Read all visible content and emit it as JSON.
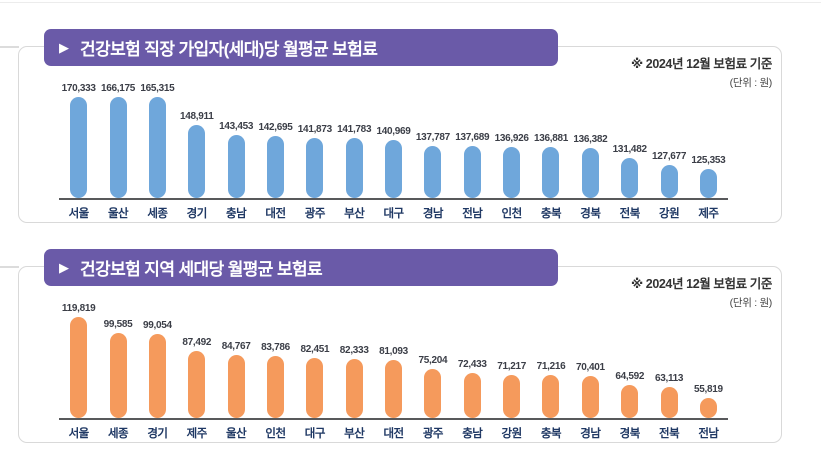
{
  "colors": {
    "header_purple": "#6a5aa8",
    "bar_blue": "#6fa7db",
    "bar_orange": "#f59a5c",
    "axis_gray": "#58595b",
    "region_label_navy": "#1f3864"
  },
  "chart_data": [
    {
      "type": "bar",
      "title_marker": "▶",
      "title": "건강보험 직장 가입자(세대)당 월평균 보험료",
      "note": "※ 2024년 12월 보험료 기준",
      "unit": "(단위 : 원)",
      "categories": [
        "서울",
        "울산",
        "세종",
        "경기",
        "충남",
        "대전",
        "광주",
        "부산",
        "대구",
        "경남",
        "전남",
        "인천",
        "충북",
        "경북",
        "전북",
        "강원",
        "제주"
      ],
      "values": [
        170333,
        166175,
        165315,
        148911,
        143453,
        142695,
        141873,
        141783,
        140969,
        137787,
        137689,
        136926,
        136881,
        136382,
        131482,
        127677,
        125353
      ],
      "value_labels": [
        "170,333",
        "166,175",
        "165,315",
        "148,911",
        "143,453",
        "142,695",
        "141,873",
        "141,783",
        "140,969",
        "137,787",
        "137,689",
        "136,926",
        "136,881",
        "136,382",
        "131,482",
        "127,677",
        "125,353"
      ],
      "bar_color": "#6fa7db",
      "xlabel": "",
      "ylabel": "원",
      "ylim": [
        110000,
        171000
      ],
      "grid": false,
      "legend": "none"
    },
    {
      "type": "bar",
      "title_marker": "▶",
      "title": "건강보험 지역 세대당 월평균 보험료",
      "note": "※ 2024년 12월 보험료 기준",
      "unit": "(단위 : 원)",
      "categories": [
        "서울",
        "세종",
        "경기",
        "제주",
        "울산",
        "인천",
        "대구",
        "부산",
        "대전",
        "광주",
        "충남",
        "강원",
        "충북",
        "경남",
        "경북",
        "전북",
        "전남"
      ],
      "values": [
        119819,
        99585,
        99054,
        87492,
        84767,
        83786,
        82451,
        82333,
        81093,
        75204,
        72433,
        71217,
        71216,
        70401,
        64592,
        63113,
        55819
      ],
      "value_labels": [
        "119,819",
        "99,585",
        "99,054",
        "87,492",
        "84,767",
        "83,786",
        "82,451",
        "82,333",
        "81,093",
        "75,204",
        "72,433",
        "71,217",
        "71,216",
        "70,401",
        "64,592",
        "63,113",
        "55,819"
      ],
      "bar_color": "#f59a5c",
      "xlabel": "",
      "ylabel": "원",
      "ylim": [
        42000,
        120000
      ],
      "grid": false,
      "legend": "none"
    }
  ]
}
